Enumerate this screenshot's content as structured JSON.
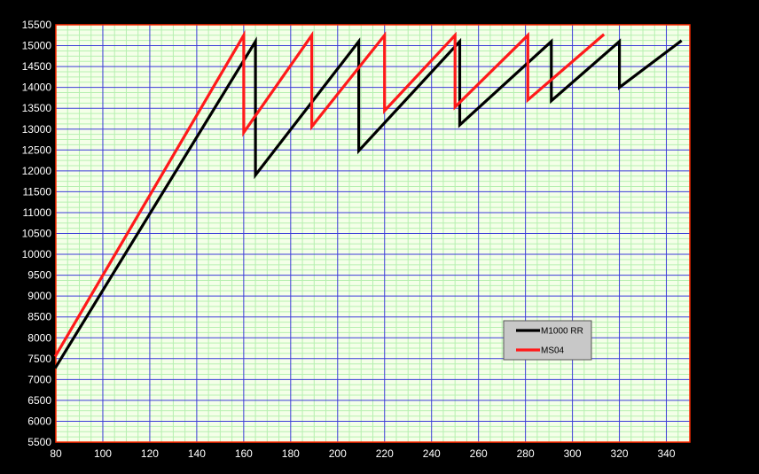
{
  "colors": {
    "background": "#000000",
    "plot_background": "#f4ffe8",
    "minor_grid": "#b6f0b0",
    "major_grid": "#3b3bd8",
    "plot_border": "#ff2a00",
    "tick_text": "#ffffff",
    "legend_background": "#c8c8c8"
  },
  "chart_data": {
    "type": "line",
    "title": "",
    "xlabel": "",
    "ylabel": "",
    "xlim": [
      80,
      350
    ],
    "ylim": [
      5500,
      15500
    ],
    "x_ticks": [
      "80",
      "100",
      "120",
      "140",
      "160",
      "180",
      "200",
      "220",
      "240",
      "260",
      "280",
      "300",
      "320",
      "340"
    ],
    "y_ticks": [
      "5500",
      "6000",
      "6500",
      "7000",
      "7500",
      "8000",
      "8500",
      "9000",
      "9500",
      "10000",
      "10500",
      "11000",
      "11500",
      "12000",
      "12500",
      "13000",
      "13500",
      "14000",
      "14500",
      "15000",
      "15500"
    ],
    "grid": true,
    "legend_position": "lower-right",
    "series": [
      {
        "name": "M1000 RR",
        "color": "#000000",
        "points": [
          [
            80,
            7300
          ],
          [
            165,
            15100
          ],
          [
            165,
            11900
          ],
          [
            209,
            15100
          ],
          [
            209,
            12480
          ],
          [
            252,
            15100
          ],
          [
            252,
            13100
          ],
          [
            291,
            15100
          ],
          [
            291,
            13680
          ],
          [
            320,
            15100
          ],
          [
            320,
            14000
          ],
          [
            346,
            15100
          ]
        ]
      },
      {
        "name": "MS04",
        "color": "#ff1a1a",
        "points": [
          [
            80,
            7580
          ],
          [
            160,
            15250
          ],
          [
            160,
            12920
          ],
          [
            189,
            15250
          ],
          [
            189,
            13060
          ],
          [
            220,
            15250
          ],
          [
            220,
            13440
          ],
          [
            250,
            15250
          ],
          [
            250,
            13530
          ],
          [
            281,
            15250
          ],
          [
            281,
            13700
          ],
          [
            313,
            15250
          ]
        ]
      }
    ]
  }
}
